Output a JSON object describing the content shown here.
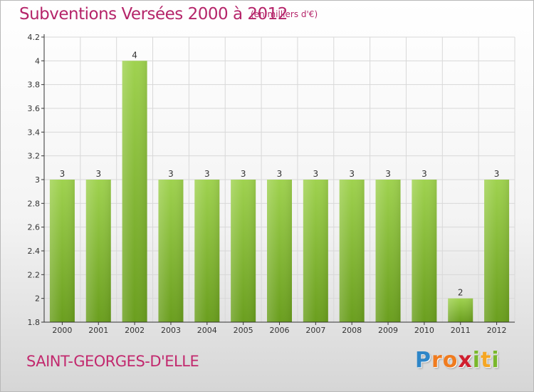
{
  "title": "Subventions Versées 2000 à 2012",
  "subtitle": "(en milliers d'€)",
  "commune": "SAINT-GEORGES-D'ELLE",
  "logo": {
    "text": "Proxiti",
    "letters": [
      {
        "char": "P",
        "color": "#2e86c8"
      },
      {
        "char": "r",
        "color": "#f07b1e"
      },
      {
        "char": "o",
        "color": "#f07b1e"
      },
      {
        "char": "x",
        "color": "#d01f2f"
      },
      {
        "char": "i",
        "color": "#79b82b"
      },
      {
        "char": "t",
        "color": "#f5a623"
      },
      {
        "char": "i",
        "color": "#79b82b"
      }
    ]
  },
  "colors": {
    "bar_light": "#9fd24f",
    "bar_dark": "#6a9e1e",
    "title": "#b5256a",
    "axis": "#333333",
    "grid": "#d8d8d8"
  },
  "chart_data": {
    "type": "bar",
    "categories": [
      "2000",
      "2001",
      "2002",
      "2003",
      "2004",
      "2005",
      "2006",
      "2007",
      "2008",
      "2009",
      "2010",
      "2011",
      "2012"
    ],
    "values": [
      3,
      3,
      4,
      3,
      3,
      3,
      3,
      3,
      3,
      3,
      3,
      2,
      3
    ],
    "data_labels": [
      "3",
      "3",
      "4",
      "3",
      "3",
      "3",
      "3",
      "3",
      "3",
      "3",
      "3",
      "2",
      "3"
    ],
    "yticks": [
      1.8,
      2,
      2.2,
      2.4,
      2.6,
      2.8,
      3,
      3.2,
      3.4,
      3.6,
      3.8,
      4,
      4.2
    ],
    "ytick_labels": [
      "1.8",
      "2",
      "2.2",
      "2.4",
      "2.6",
      "2.8",
      "3",
      "3.2",
      "3.4",
      "3.6",
      "3.8",
      "4",
      "4.2"
    ],
    "ylim": [
      1.8,
      4.2
    ],
    "grid": true,
    "xlabel": "",
    "ylabel": ""
  }
}
